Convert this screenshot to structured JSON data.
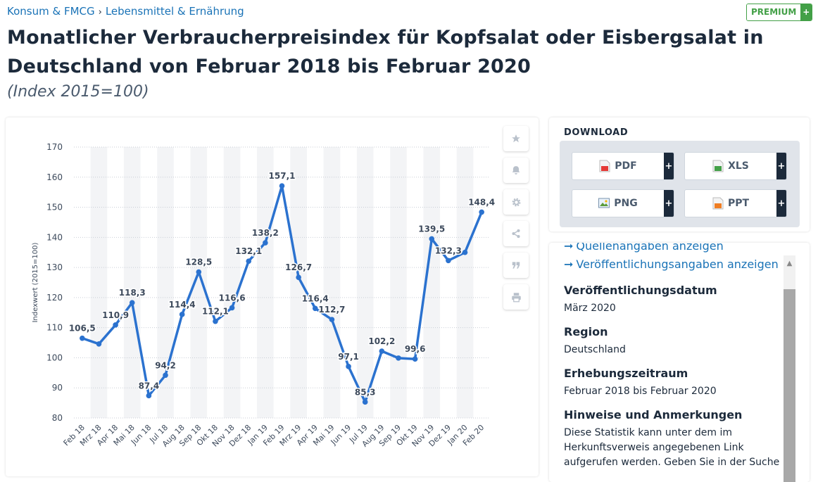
{
  "breadcrumb": {
    "item1": "Konsum & FMCG",
    "separator": "›",
    "item2": "Lebensmittel & Ernährung"
  },
  "premium": {
    "label": "PREMIUM",
    "plus": "+"
  },
  "title": "Monatlicher Verbraucherpreisindex für Kopfsalat oder Eisbergsalat in Deutschland von Februar 2018 bis Februar 2020",
  "subtitle": "(Index 2015=100)",
  "toolbar": {
    "icons": [
      "star-icon",
      "bell-icon",
      "gear-icon",
      "share-icon",
      "quote-icon",
      "print-icon"
    ]
  },
  "download": {
    "title": "DOWNLOAD",
    "buttons": [
      {
        "label": "PDF",
        "plus": "+"
      },
      {
        "label": "XLS",
        "plus": "+"
      },
      {
        "label": "PNG",
        "plus": "+"
      },
      {
        "label": "PPT",
        "plus": "+"
      }
    ]
  },
  "info": {
    "link_sources": "Quellenangaben anzeigen",
    "link_publication": "Veröffentlichungsangaben anzeigen",
    "link_arrow": "➞",
    "fields": [
      {
        "heading": "Veröffentlichungsdatum",
        "value": "März 2020"
      },
      {
        "heading": "Region",
        "value": "Deutschland"
      },
      {
        "heading": "Erhebungszeitraum",
        "value": "Februar 2018 bis Februar 2020"
      },
      {
        "heading": "Hinweise und Anmerkungen",
        "value": "Diese Statistik kann unter dem im Herkunftsverweis angegebenen Link aufgerufen werden. Geben Sie in der Suche"
      }
    ]
  },
  "chart_data": {
    "type": "line",
    "ylabel": "Indexwert (2015=100)",
    "xlabel": "",
    "ylim": [
      80,
      170
    ],
    "yticks": [
      80,
      90,
      100,
      110,
      120,
      130,
      140,
      150,
      160,
      170
    ],
    "grid": "horizontal dotted, alternating column shading",
    "line_color": "#2b72cf",
    "categories": [
      "Feb 18",
      "Mrz 18",
      "Apr 18",
      "Mai 18",
      "Jun 18",
      "Jul 18",
      "Aug 18",
      "Sep 18",
      "Okt 18",
      "Nov 18",
      "Dez 18",
      "Jan 19",
      "Feb 19",
      "Mrz 19",
      "Apr 19",
      "Mai 19",
      "Jun 19",
      "Jul 19",
      "Aug 19",
      "Sep 19",
      "Okt 19",
      "Nov 19",
      "Dez 19",
      "Jan 20",
      "Feb 20"
    ],
    "values": [
      106.5,
      104.6,
      110.9,
      118.3,
      87.4,
      94.2,
      114.4,
      128.5,
      112.1,
      116.6,
      132.1,
      138.2,
      157.1,
      126.7,
      116.4,
      112.7,
      97.1,
      85.3,
      102.2,
      99.9,
      99.6,
      139.5,
      132.3,
      135.0,
      148.4
    ],
    "data_labels": [
      "106,5",
      null,
      "110,9",
      "118,3",
      "87,4",
      "94,2",
      "114,4",
      "128,5",
      "112,1",
      "116,6",
      "132,1",
      "138,2",
      "157,1",
      "126,7",
      "116,4",
      "112,7",
      "97,1",
      "85,3",
      "102,2",
      null,
      "99,6",
      "139,5",
      "132,3",
      null,
      "148,4"
    ]
  }
}
